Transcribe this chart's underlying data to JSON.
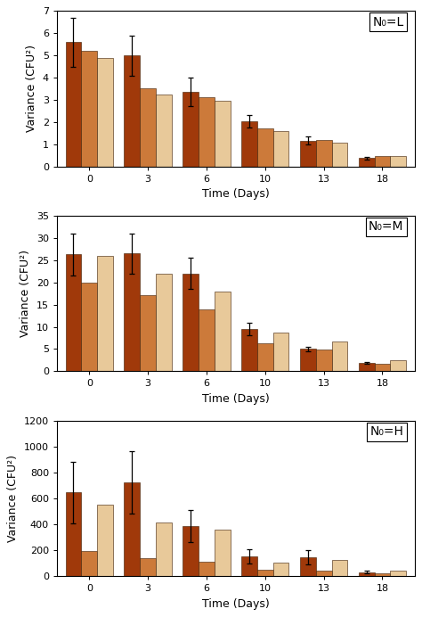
{
  "panels": [
    {
      "label": "N₀=L",
      "ylabel": "Variance (CFU²)",
      "xlabel": "Time (Days)",
      "ylim": [
        0,
        7
      ],
      "yticks": [
        0,
        1,
        2,
        3,
        4,
        5,
        6,
        7
      ],
      "times": [
        0,
        3,
        6,
        10,
        13,
        18
      ],
      "bar1": [
        5.6,
        5.0,
        3.35,
        2.02,
        1.15,
        0.37
      ],
      "bar2": [
        5.22,
        3.52,
        3.1,
        1.73,
        1.18,
        0.47
      ],
      "bar3": [
        4.88,
        3.25,
        2.97,
        1.6,
        1.07,
        0.47
      ],
      "err1": [
        1.1,
        0.9,
        0.65,
        0.28,
        0.18,
        0.06
      ]
    },
    {
      "label": "N₀=M",
      "ylabel": "Variance (CFU²)",
      "xlabel": "Time (Days)",
      "ylim": [
        0,
        35
      ],
      "yticks": [
        0,
        5,
        10,
        15,
        20,
        25,
        30,
        35
      ],
      "times": [
        0,
        3,
        6,
        10,
        13,
        18
      ],
      "bar1": [
        26.3,
        26.5,
        22.0,
        9.6,
        5.05,
        1.8
      ],
      "bar2": [
        20.0,
        17.2,
        14.0,
        6.25,
        4.85,
        1.65
      ],
      "bar3": [
        26.0,
        22.0,
        18.0,
        8.75,
        6.6,
        2.55
      ],
      "err1": [
        4.7,
        4.5,
        3.5,
        1.4,
        0.5,
        0.2
      ]
    },
    {
      "label": "N₀=H",
      "ylabel": "Variance (CFU²)",
      "xlabel": "Time (Days)",
      "ylim": [
        0,
        1200
      ],
      "yticks": [
        0,
        200,
        400,
        600,
        800,
        1000,
        1200
      ],
      "times": [
        0,
        3,
        6,
        10,
        13,
        18
      ],
      "bar1": [
        645,
        725,
        385,
        150,
        145,
        30
      ],
      "bar2": [
        190,
        140,
        110,
        50,
        42,
        18
      ],
      "bar3": [
        550,
        415,
        362,
        105,
        125,
        42
      ],
      "err1": [
        235,
        240,
        125,
        55,
        55,
        12
      ]
    }
  ],
  "colors": [
    "#A0390A",
    "#CC7A3A",
    "#E8C99A"
  ],
  "bar_width": 0.27,
  "edge_color": "#3a1a00",
  "label_fontsize": 9,
  "tick_fontsize": 8,
  "annotation_fontsize": 10,
  "background_color": "#ffffff"
}
